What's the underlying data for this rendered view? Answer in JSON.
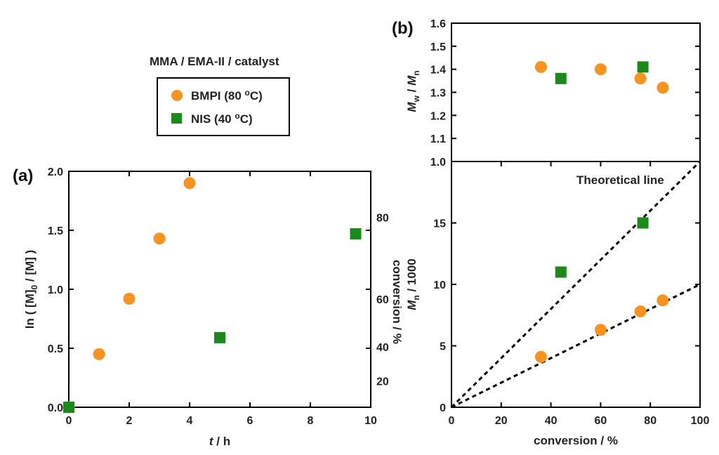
{
  "colors": {
    "bmpi": "#f7931e",
    "nis": "#1a8a1a"
  },
  "legend": {
    "title": "MMA / EMA-II / catalyst",
    "bmpi_text": "BMPI (80 ",
    "nis_text": "NIS (40 ",
    "degree_sup": "o",
    "unit_tail": "C)"
  },
  "chart_data": [
    {
      "id": "a",
      "panel_label": "(a)",
      "type": "scatter",
      "xlabel_italic": "t",
      "xlabel_rest": " / h",
      "ylabel_left": "ln ( [M]",
      "ylabel_sub": "0",
      "ylabel_right": " / [M] )",
      "y2label": "conversion / %",
      "xlim": [
        0,
        10
      ],
      "ylim": [
        0,
        2.0
      ],
      "xticks": [
        "0",
        "2",
        "4",
        "6",
        "8",
        "10"
      ],
      "yticks": [
        "0.0",
        "0.5",
        "1.0",
        "1.5",
        "2.0"
      ],
      "y2ticks": [
        "20",
        "40",
        "60",
        "80"
      ],
      "series": [
        {
          "name": "BMPI",
          "marker": "circle",
          "x": [
            0,
            1,
            2,
            3,
            4
          ],
          "y": [
            0,
            0.45,
            0.92,
            1.43,
            1.9
          ]
        },
        {
          "name": "NIS",
          "marker": "square",
          "x": [
            0,
            5,
            9.5
          ],
          "y": [
            0,
            0.59,
            1.47
          ]
        }
      ]
    },
    {
      "id": "b_top",
      "panel_label": "(b)",
      "type": "scatter",
      "ylabel_main": "M",
      "ylabel_main_sub": "w",
      "ylabel_mid": " / ",
      "ylabel_den": "M",
      "ylabel_den_sub": "n",
      "xlim": [
        0,
        100
      ],
      "ylim": [
        1.0,
        1.6
      ],
      "yticks": [
        "1.0",
        "1.1",
        "1.2",
        "1.3",
        "1.4",
        "1.5",
        "1.6"
      ],
      "series": [
        {
          "name": "BMPI",
          "marker": "circle",
          "x": [
            36,
            60,
            76,
            85
          ],
          "y": [
            1.41,
            1.4,
            1.36,
            1.32
          ]
        },
        {
          "name": "NIS",
          "marker": "square",
          "x": [
            44,
            77
          ],
          "y": [
            1.36,
            1.41
          ]
        }
      ]
    },
    {
      "id": "b_bottom",
      "type": "scatter",
      "xlabel": "conversion / %",
      "ylabel_main": "M",
      "ylabel_main_sub": "n",
      "ylabel_rest": " / 1000",
      "annotation": "Theoretical line",
      "xlim": [
        0,
        100
      ],
      "ylim": [
        0,
        20
      ],
      "xticks": [
        "0",
        "20",
        "40",
        "60",
        "80",
        "100"
      ],
      "yticks": [
        "0",
        "5",
        "10",
        "15"
      ],
      "theoretical_lines": [
        {
          "x": [
            0,
            100
          ],
          "y": [
            0,
            20
          ]
        },
        {
          "x": [
            0,
            100
          ],
          "y": [
            0,
            10
          ]
        }
      ],
      "series": [
        {
          "name": "BMPI",
          "marker": "circle",
          "x": [
            36,
            60,
            76,
            85
          ],
          "y": [
            4.1,
            6.3,
            7.8,
            8.7
          ]
        },
        {
          "name": "NIS",
          "marker": "square",
          "x": [
            44,
            77
          ],
          "y": [
            11.0,
            15.0
          ]
        }
      ]
    }
  ]
}
